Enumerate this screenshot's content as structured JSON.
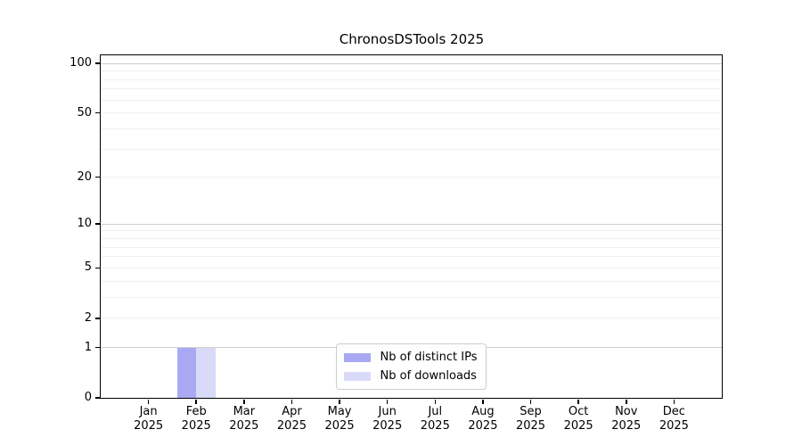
{
  "chart_data": {
    "type": "bar",
    "title": "ChronosDSTools 2025",
    "categories": [
      {
        "month": "Jan",
        "year": "2025"
      },
      {
        "month": "Feb",
        "year": "2025"
      },
      {
        "month": "Mar",
        "year": "2025"
      },
      {
        "month": "Apr",
        "year": "2025"
      },
      {
        "month": "May",
        "year": "2025"
      },
      {
        "month": "Jun",
        "year": "2025"
      },
      {
        "month": "Jul",
        "year": "2025"
      },
      {
        "month": "Aug",
        "year": "2025"
      },
      {
        "month": "Sep",
        "year": "2025"
      },
      {
        "month": "Oct",
        "year": "2025"
      },
      {
        "month": "Nov",
        "year": "2025"
      },
      {
        "month": "Dec",
        "year": "2025"
      }
    ],
    "series": [
      {
        "name": "Nb of distinct IPs",
        "color": "#a9a9f3",
        "values": [
          0,
          1,
          0,
          0,
          0,
          0,
          0,
          0,
          0,
          0,
          0,
          0
        ]
      },
      {
        "name": "Nb of downloads",
        "color": "#d9d9f8",
        "values": [
          0,
          1,
          0,
          0,
          0,
          0,
          0,
          0,
          0,
          0,
          0,
          0
        ]
      }
    ],
    "y_axis": {
      "scale": "log1p",
      "range": [
        0,
        112
      ],
      "tick_values": [
        0,
        1,
        2,
        5,
        10,
        20,
        50,
        100
      ],
      "tick_labels": [
        "0",
        "1",
        "2",
        "5",
        "10",
        "20",
        "50",
        "100"
      ],
      "major_gridlines": [
        1,
        10,
        100
      ],
      "minor_gridlines": [
        2,
        3,
        4,
        5,
        6,
        7,
        8,
        9,
        20,
        30,
        40,
        50,
        60,
        70,
        80,
        90
      ]
    },
    "legend": {
      "position": "lower center",
      "entries": [
        "Nb of distinct IPs",
        "Nb of downloads"
      ]
    },
    "grid": true,
    "colors": {
      "bar_distinct_ips": "#a9a9f3",
      "bar_downloads": "#d9d9f8",
      "major_grid": "#d0d0d0",
      "minor_grid": "#f0f0f0",
      "axis": "#000000",
      "background": "#ffffff"
    }
  }
}
